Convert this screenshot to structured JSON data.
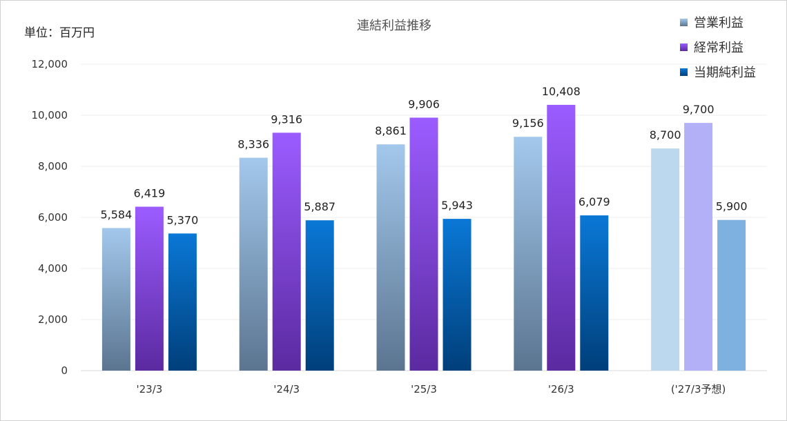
{
  "chart_data": {
    "type": "bar",
    "title": "連結利益推移",
    "unit_label": "単位：百万円",
    "categories": [
      "'23/3",
      "'24/3",
      "'25/3",
      "'26/3",
      "('27/3予想)"
    ],
    "series": [
      {
        "name": "営業利益",
        "values": [
          5584,
          8336,
          8861,
          9156,
          8700
        ]
      },
      {
        "name": "経常利益",
        "values": [
          6419,
          9316,
          9906,
          10408,
          9700
        ]
      },
      {
        "name": "当期純利益",
        "values": [
          5370,
          5887,
          5943,
          6079,
          5900
        ]
      }
    ],
    "value_labels": [
      [
        "5,584",
        "8,336",
        "8,861",
        "9,156",
        "8,700"
      ],
      [
        "6,419",
        "9,316",
        "9,906",
        "10,408",
        "9,700"
      ],
      [
        "5,370",
        "5,887",
        "5,943",
        "6,079",
        "5,900"
      ]
    ],
    "ylim": [
      0,
      12000
    ],
    "yticks": [
      0,
      2000,
      4000,
      6000,
      8000,
      10000,
      12000
    ],
    "ytick_labels": [
      "0",
      "2,000",
      "4,000",
      "6,000",
      "8,000",
      "10,000",
      "12,000"
    ],
    "grid": true,
    "legend_position": "top-right",
    "forecast_category_index": 4,
    "colors": {
      "series_top": [
        "#a3c8ec",
        "#9b5cff",
        "#0a78d6"
      ],
      "series_bottom": [
        "#5b7590",
        "#5b2aa0",
        "#003f7a"
      ],
      "forecast": [
        "#bcd8ef",
        "#b3b0f7",
        "#7eb1e0"
      ]
    }
  }
}
